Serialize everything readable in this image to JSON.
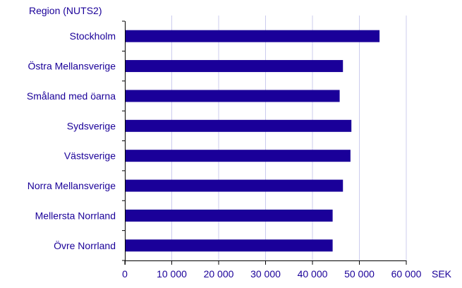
{
  "chart_data": {
    "type": "bar",
    "orientation": "horizontal",
    "y_axis_title": "Region (NUTS2)",
    "x_axis_unit": "SEK",
    "categories": [
      "Stockholm",
      "Östra Mellansverige",
      "Småland med öarna",
      "Sydsverige",
      "Västsverige",
      "Norra Mellansverige",
      "Mellersta Norrland",
      "Övre Norrland"
    ],
    "values": [
      54300,
      46500,
      45800,
      48300,
      48100,
      46500,
      44300,
      44300
    ],
    "xlim": [
      0,
      60000
    ],
    "x_ticks": [
      0,
      10000,
      20000,
      30000,
      40000,
      50000,
      60000
    ],
    "x_tick_labels": [
      "0",
      "10 000",
      "20 000",
      "30 000",
      "40 000",
      "50 000",
      "60 000"
    ],
    "grid": "vertical",
    "legend": "none"
  },
  "colors": {
    "bar": "#1a0099",
    "text": "#1a0099",
    "axis": "#000000",
    "grid": "#ccccee"
  }
}
